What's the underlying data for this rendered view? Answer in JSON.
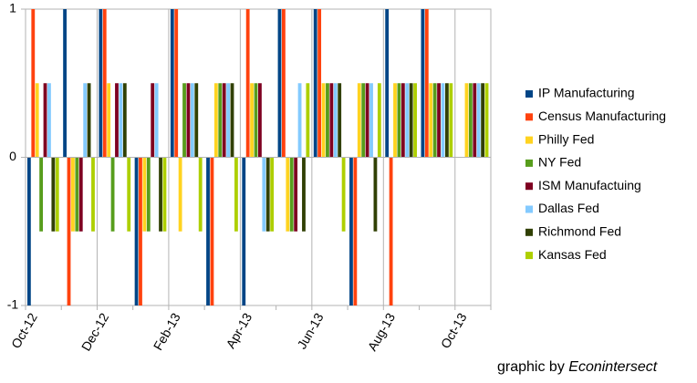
{
  "chart_data": {
    "type": "bar",
    "categories": [
      "Oct-12",
      null,
      "Dec-12",
      null,
      "Feb-13",
      null,
      "Apr-13",
      null,
      "Jun-13",
      null,
      "Aug-13",
      null,
      "Oct-13"
    ],
    "series": [
      {
        "name": "IP Manufacturing",
        "color": "#004586",
        "values": [
          -1,
          1,
          1,
          -1,
          1,
          -1,
          -1,
          1,
          1,
          -1,
          1,
          1,
          0
        ]
      },
      {
        "name": "Census Manufacturing",
        "color": "#ff420e",
        "values": [
          1,
          -1,
          1,
          -1,
          1,
          -1,
          1,
          1,
          1,
          -1,
          -1,
          1,
          0
        ]
      },
      {
        "name": "Philly Fed",
        "color": "#ffd320",
        "values": [
          0.5,
          -0.5,
          0.5,
          -0.5,
          -0.5,
          0.5,
          0.5,
          -0.5,
          0.5,
          0.5,
          0.5,
          0.5,
          0.5
        ]
      },
      {
        "name": "NY Fed",
        "color": "#579d1c",
        "values": [
          -0.5,
          -0.5,
          -0.5,
          -0.5,
          0.5,
          0.5,
          0.5,
          -0.5,
          0.5,
          0.5,
          0.5,
          0.5,
          0.5
        ]
      },
      {
        "name": "ISM Manufactuing",
        "color": "#7e0021",
        "values": [
          0.5,
          -0.5,
          0.5,
          0.5,
          0.5,
          0.5,
          0.5,
          -0.5,
          0.5,
          0.5,
          0.5,
          0.5,
          0.5
        ]
      },
      {
        "name": "Dallas Fed",
        "color": "#83caff",
        "values": [
          0.5,
          0.5,
          0.5,
          0.5,
          0.5,
          0.5,
          -0.5,
          0.5,
          0.5,
          0.5,
          0.5,
          0.5,
          0.5
        ]
      },
      {
        "name": "Richmond Fed",
        "color": "#314004",
        "values": [
          -0.5,
          0.5,
          0.5,
          -0.5,
          0.5,
          0.5,
          -0.5,
          -0.5,
          0.5,
          -0.5,
          0.5,
          0.5,
          0.5
        ]
      },
      {
        "name": "Kansas Fed",
        "color": "#aecf00",
        "values": [
          -0.5,
          -0.5,
          -0.5,
          -0.5,
          -0.5,
          -0.5,
          -0.5,
          0.5,
          -0.5,
          0.5,
          0.5,
          0.5,
          0.5
        ]
      }
    ],
    "ylim": [
      -1,
      1
    ],
    "yticks": [
      -1,
      0,
      1
    ],
    "credit": [
      "graphic by",
      "Econintersect"
    ]
  }
}
